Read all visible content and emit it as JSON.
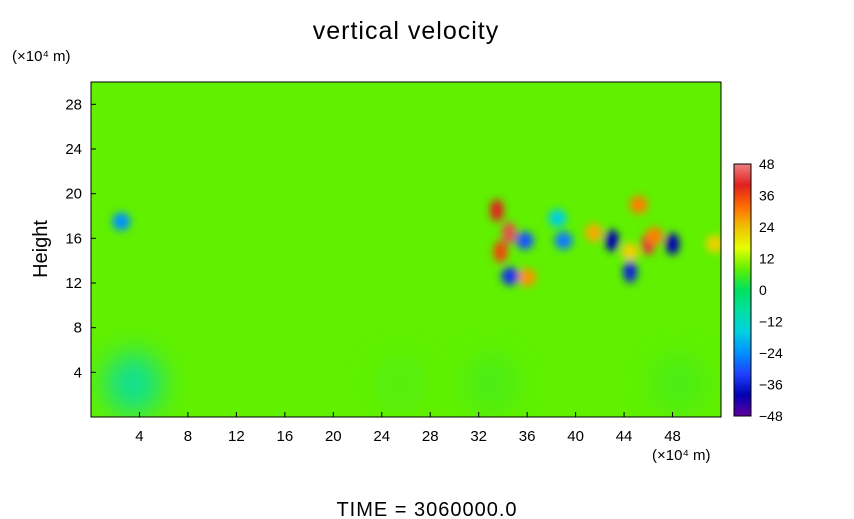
{
  "chart_data": {
    "type": "heatmap",
    "title": "vertical velocity",
    "xlabel": "",
    "ylabel": "Height",
    "x_unit_label": "(×10⁴ m)",
    "y_unit_label": "(×10⁴ m)",
    "xlim": [
      0,
      52
    ],
    "ylim": [
      0,
      30
    ],
    "x_ticks": [
      4,
      8,
      12,
      16,
      20,
      24,
      28,
      32,
      36,
      40,
      44,
      48
    ],
    "y_ticks": [
      4,
      8,
      12,
      16,
      20,
      24,
      28
    ],
    "colorbar": {
      "min": -48,
      "max": 48,
      "ticks": [
        48,
        36,
        24,
        12,
        0,
        -12,
        -24,
        -36,
        -48
      ],
      "colors": [
        "#f08080",
        "#e02020",
        "#ff6a00",
        "#f0c000",
        "#e6ff00",
        "#60f000",
        "#00e060",
        "#00e0a0",
        "#00d0e0",
        "#0090ff",
        "#2040ff",
        "#0000b0",
        "#6000a0"
      ]
    },
    "background_value": 0,
    "features": [
      {
        "x": 2.5,
        "y": 17.5,
        "value": -24
      },
      {
        "x": 33.5,
        "y": 18.5,
        "value": 40
      },
      {
        "x": 34.5,
        "y": 16.5,
        "value": 44
      },
      {
        "x": 33.8,
        "y": 14.8,
        "value": 36
      },
      {
        "x": 35.8,
        "y": 15.8,
        "value": -30
      },
      {
        "x": 34.6,
        "y": 12.6,
        "value": -34
      },
      {
        "x": 36.0,
        "y": 12.5,
        "value": 28
      },
      {
        "x": 39.0,
        "y": 15.8,
        "value": -26
      },
      {
        "x": 41.5,
        "y": 16.5,
        "value": 26
      },
      {
        "x": 43.0,
        "y": 15.8,
        "value": -40
      },
      {
        "x": 44.5,
        "y": 14.8,
        "value": 22
      },
      {
        "x": 46.0,
        "y": 15.5,
        "value": 42
      },
      {
        "x": 46.5,
        "y": 16.2,
        "value": 30
      },
      {
        "x": 45.2,
        "y": 19.0,
        "value": 30
      },
      {
        "x": 48.0,
        "y": 15.5,
        "value": -40
      },
      {
        "x": 44.5,
        "y": 13.0,
        "value": -36
      },
      {
        "x": 51.5,
        "y": 15.5,
        "value": 22
      },
      {
        "x": 38.5,
        "y": 17.8,
        "value": -16
      },
      {
        "x": 33.0,
        "y": 3.0,
        "value": 6
      },
      {
        "x": 25.5,
        "y": 3.0,
        "value": 7
      },
      {
        "x": 3.5,
        "y": 3.0,
        "value": -10
      },
      {
        "x": 48.5,
        "y": 3.0,
        "value": 6
      }
    ],
    "footer": "TIME  =  3060000.0"
  }
}
